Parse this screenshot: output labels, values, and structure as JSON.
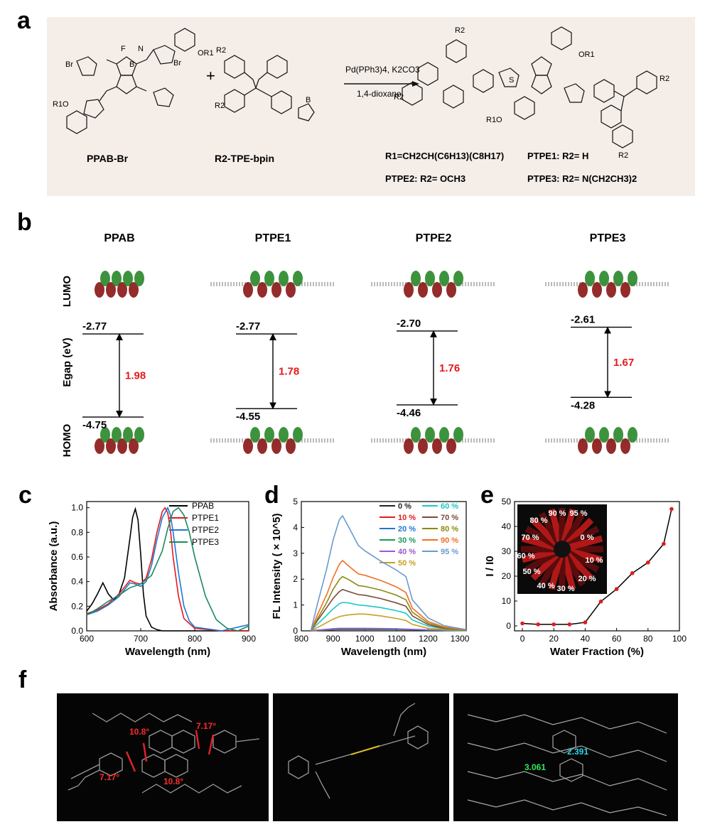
{
  "panels": {
    "a": "a",
    "b": "b",
    "c": "c",
    "d": "d",
    "e": "e",
    "f": "f"
  },
  "scheme": {
    "reactant1": "PPAB-Br",
    "reactant2": "R2-TPE-bpin",
    "plus": "+",
    "catalyst": "Pd(PPh3)4, K2CO3",
    "solvent": "1,4-dioxane",
    "r1": "R1=CH2CH(C6H13)(C8H17)",
    "ptpe1": "PTPE1: R2= H",
    "ptpe2": "PTPE2: R2= OCH3",
    "ptpe3": "PTPE3: R2= N(CH2CH3)2",
    "atoms": {
      "br": "Br",
      "n": "N",
      "b": "B",
      "f": "F",
      "o": "O",
      "or1": "OR1",
      "r1o": "R1O",
      "r2": "R2",
      "s": "S"
    }
  },
  "energy": {
    "row_labels": {
      "lumo": "LUMO",
      "egap": "Egap (eV)",
      "homo": "HOMO"
    },
    "molecules": [
      {
        "name": "PPAB",
        "lumo": "-2.77",
        "homo": "-4.75",
        "gap": "1.98"
      },
      {
        "name": "PTPE1",
        "lumo": "-2.77",
        "homo": "-4.55",
        "gap": "1.78"
      },
      {
        "name": "PTPE2",
        "lumo": "-2.70",
        "homo": "-4.46",
        "gap": "1.76"
      },
      {
        "name": "PTPE3",
        "lumo": "-2.61",
        "homo": "-4.28",
        "gap": "1.67"
      }
    ]
  },
  "chart_data": [
    {
      "type": "line",
      "panel": "c",
      "xlabel": "Wavelength (nm)",
      "ylabel": "Absorbance (a.u.)",
      "xlim": [
        600,
        900
      ],
      "ylim": [
        0,
        1.05
      ],
      "xticks": [
        "600",
        "700",
        "800",
        "900"
      ],
      "yticks": [
        "0.0",
        "0.2",
        "0.4",
        "0.6",
        "0.8",
        "1.0"
      ],
      "legend": "top-right",
      "series": [
        {
          "name": "PPAB",
          "color": "#000000",
          "x": [
            600,
            610,
            620,
            630,
            640,
            650,
            660,
            670,
            680,
            685,
            690,
            695,
            700,
            705,
            710,
            720,
            730,
            740,
            760,
            800,
            900
          ],
          "y": [
            0.16,
            0.22,
            0.3,
            0.39,
            0.3,
            0.25,
            0.3,
            0.43,
            0.75,
            0.92,
            0.99,
            0.9,
            0.62,
            0.3,
            0.12,
            0.03,
            0.01,
            0,
            0,
            0,
            0
          ]
        },
        {
          "name": "PTPE1",
          "color": "#e41a1c",
          "x": [
            600,
            620,
            640,
            660,
            680,
            690,
            700,
            710,
            720,
            730,
            740,
            745,
            750,
            755,
            760,
            770,
            780,
            800,
            850,
            900
          ],
          "y": [
            0.14,
            0.17,
            0.22,
            0.3,
            0.41,
            0.39,
            0.38,
            0.43,
            0.58,
            0.8,
            0.97,
            1.0,
            0.96,
            0.82,
            0.6,
            0.28,
            0.1,
            0.02,
            0,
            0
          ]
        },
        {
          "name": "PTPE2",
          "color": "#1f77d4",
          "x": [
            600,
            620,
            640,
            660,
            680,
            690,
            700,
            710,
            720,
            730,
            740,
            750,
            755,
            760,
            770,
            780,
            790,
            800,
            850,
            900
          ],
          "y": [
            0.13,
            0.16,
            0.21,
            0.28,
            0.39,
            0.38,
            0.36,
            0.4,
            0.53,
            0.74,
            0.92,
            1.0,
            0.94,
            0.8,
            0.47,
            0.2,
            0.08,
            0.03,
            0,
            0.05
          ]
        },
        {
          "name": "PTPE3",
          "color": "#1a8a5a",
          "x": [
            600,
            620,
            640,
            660,
            680,
            700,
            720,
            740,
            750,
            760,
            770,
            780,
            790,
            800,
            820,
            840,
            860,
            880,
            900
          ],
          "y": [
            0.13,
            0.18,
            0.24,
            0.29,
            0.35,
            0.38,
            0.45,
            0.65,
            0.83,
            0.97,
            1.0,
            0.94,
            0.8,
            0.6,
            0.28,
            0.09,
            0.02,
            0,
            0.04
          ]
        }
      ]
    },
    {
      "type": "line",
      "panel": "d",
      "xlabel": "Wavelength (nm)",
      "ylabel": "FL Intensity ( × 10^5)",
      "xlim": [
        800,
        1320
      ],
      "ylim": [
        0,
        5
      ],
      "xticks": [
        "800",
        "900",
        "1000",
        "1100",
        "1200",
        "1300"
      ],
      "yticks": [
        "0",
        "1",
        "2",
        "3",
        "4",
        "5"
      ],
      "legend": "top-right",
      "x": [
        830,
        850,
        880,
        900,
        920,
        930,
        950,
        980,
        1000,
        1050,
        1100,
        1130,
        1150,
        1200,
        1250,
        1300,
        1320
      ],
      "series": [
        {
          "name": "0 %",
          "color": "#222222",
          "y": [
            0,
            0.02,
            0.04,
            0.05,
            0.06,
            0.06,
            0.06,
            0.06,
            0.06,
            0.06,
            0.05,
            0.05,
            0.04,
            0.03,
            0.02,
            0.01,
            0.01
          ]
        },
        {
          "name": "10 %",
          "color": "#e41a1c",
          "y": [
            0,
            0.02,
            0.03,
            0.04,
            0.05,
            0.05,
            0.05,
            0.05,
            0.05,
            0.05,
            0.05,
            0.04,
            0.04,
            0.03,
            0.02,
            0.01,
            0.01
          ]
        },
        {
          "name": "20 %",
          "color": "#1f77d4",
          "y": [
            0,
            0.02,
            0.04,
            0.05,
            0.06,
            0.06,
            0.06,
            0.06,
            0.06,
            0.06,
            0.05,
            0.05,
            0.04,
            0.03,
            0.02,
            0.01,
            0.01
          ]
        },
        {
          "name": "30 %",
          "color": "#1a9a5a",
          "y": [
            0,
            0.02,
            0.04,
            0.06,
            0.07,
            0.07,
            0.07,
            0.07,
            0.07,
            0.06,
            0.06,
            0.05,
            0.05,
            0.03,
            0.02,
            0.01,
            0.01
          ]
        },
        {
          "name": "40 %",
          "color": "#9b59d0",
          "y": [
            0,
            0.03,
            0.06,
            0.08,
            0.1,
            0.1,
            0.1,
            0.1,
            0.1,
            0.09,
            0.08,
            0.07,
            0.06,
            0.04,
            0.03,
            0.02,
            0.01
          ]
        },
        {
          "name": "50 %",
          "color": "#c8a020",
          "y": [
            0,
            0.12,
            0.32,
            0.45,
            0.55,
            0.58,
            0.62,
            0.65,
            0.65,
            0.58,
            0.48,
            0.4,
            0.25,
            0.1,
            0.05,
            0.02,
            0.01
          ]
        },
        {
          "name": "60 %",
          "color": "#18c8c8",
          "y": [
            0,
            0.25,
            0.6,
            0.85,
            1.05,
            1.1,
            1.08,
            1.0,
            0.98,
            0.9,
            0.78,
            0.68,
            0.42,
            0.18,
            0.08,
            0.03,
            0.02
          ]
        },
        {
          "name": "70 %",
          "color": "#7a4a3a",
          "y": [
            0,
            0.38,
            0.9,
            1.25,
            1.52,
            1.6,
            1.52,
            1.4,
            1.38,
            1.25,
            1.08,
            0.95,
            0.58,
            0.24,
            0.1,
            0.04,
            0.02
          ]
        },
        {
          "name": "80 %",
          "color": "#8a8a10",
          "y": [
            0,
            0.45,
            1.1,
            1.6,
            1.98,
            2.1,
            1.98,
            1.75,
            1.72,
            1.58,
            1.38,
            1.2,
            0.72,
            0.3,
            0.12,
            0.05,
            0.03
          ]
        },
        {
          "name": "90 %",
          "color": "#f07020",
          "y": [
            0,
            0.6,
            1.4,
            2.05,
            2.58,
            2.72,
            2.5,
            2.2,
            2.15,
            1.95,
            1.7,
            1.48,
            0.88,
            0.36,
            0.15,
            0.06,
            0.03
          ]
        },
        {
          "name": "95 %",
          "color": "#6a9ad0",
          "y": [
            0,
            1.0,
            2.4,
            3.5,
            4.3,
            4.45,
            4.0,
            3.3,
            3.1,
            2.7,
            2.35,
            2.1,
            1.2,
            0.5,
            0.2,
            0.09,
            0.05
          ]
        }
      ]
    },
    {
      "type": "line",
      "panel": "e",
      "xlabel": "Water Fraction  (%)",
      "ylabel": "I / I0",
      "xlim": [
        -5,
        100
      ],
      "ylim": [
        -2,
        50
      ],
      "xticks": [
        "0",
        "20",
        "40",
        "60",
        "80",
        "100"
      ],
      "yticks": [
        "0",
        "10",
        "20",
        "30",
        "40",
        "50"
      ],
      "x": [
        0,
        10,
        20,
        30,
        40,
        50,
        60,
        70,
        80,
        90,
        95
      ],
      "y": [
        1,
        0.6,
        0.6,
        0.6,
        1.4,
        9.8,
        14.8,
        21.2,
        25.5,
        33,
        47
      ],
      "inset_labels": [
        "0 %",
        "10 %",
        "20 %",
        "30 %",
        "40 %",
        "50 %",
        "60 %",
        "70 %",
        "80 %",
        "90 %",
        "95 %"
      ]
    }
  ],
  "crystal": {
    "angles": [
      "10.8°",
      "7.17°",
      "7.17°",
      "10.8°"
    ],
    "distances": [
      "3.061",
      "2.391"
    ]
  }
}
